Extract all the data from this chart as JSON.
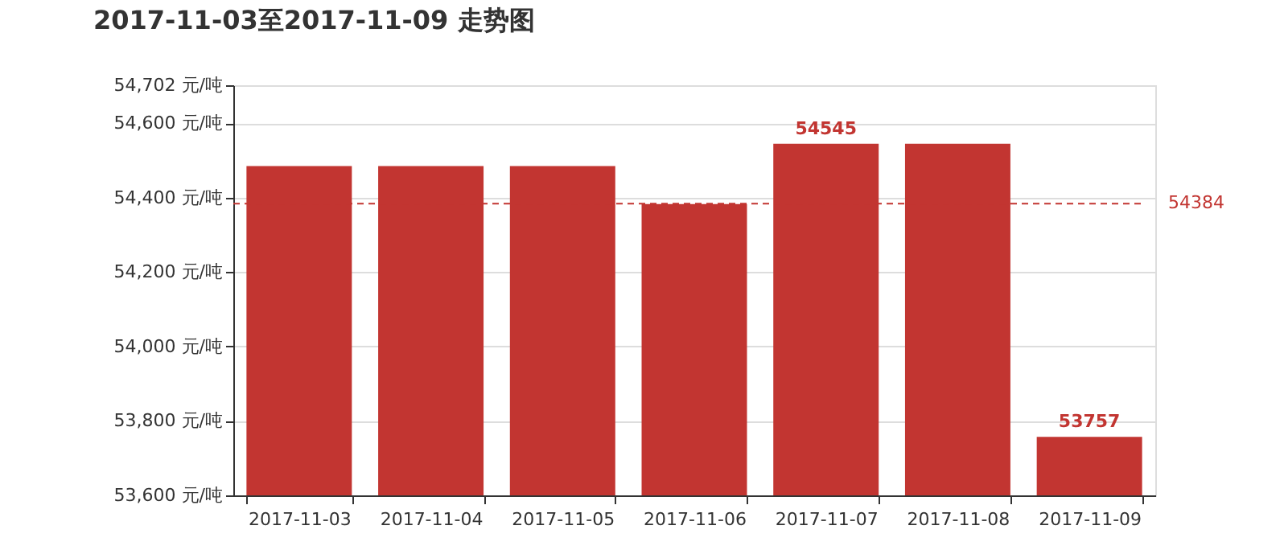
{
  "chart_data": {
    "type": "bar",
    "title": "2017-11-03至2017-11-09 走势图",
    "categories": [
      "2017-11-03",
      "2017-11-04",
      "2017-11-05",
      "2017-11-06",
      "2017-11-07",
      "2017-11-08",
      "2017-11-09"
    ],
    "series": [
      {
        "color": "#c23531",
        "values": [
          54485,
          54485,
          54485,
          54383,
          54545,
          54545,
          53757
        ]
      }
    ],
    "ylim": [
      53600,
      54702
    ],
    "yticks": [
      {
        "value": 53600,
        "label": "53,600 元/吨"
      },
      {
        "value": 53800,
        "label": "53,800 元/吨"
      },
      {
        "value": 54000,
        "label": "54,000 元/吨"
      },
      {
        "value": 54200,
        "label": "54,200 元/吨"
      },
      {
        "value": 54400,
        "label": "54,400 元/吨"
      },
      {
        "value": 54600,
        "label": "54,600 元/吨"
      },
      {
        "value": 54702,
        "label": "54,702 元/吨"
      }
    ],
    "grid": "y",
    "annotations": [
      {
        "text": "54545",
        "x": "2017-11-07",
        "y": 54545
      },
      {
        "text": "53757",
        "x": "2017-11-09",
        "y": 53757
      }
    ],
    "ref_lines": [
      {
        "axis": "y",
        "value": 54384,
        "label": "54384",
        "color": "#c23531",
        "line_style": "dashed"
      }
    ]
  }
}
